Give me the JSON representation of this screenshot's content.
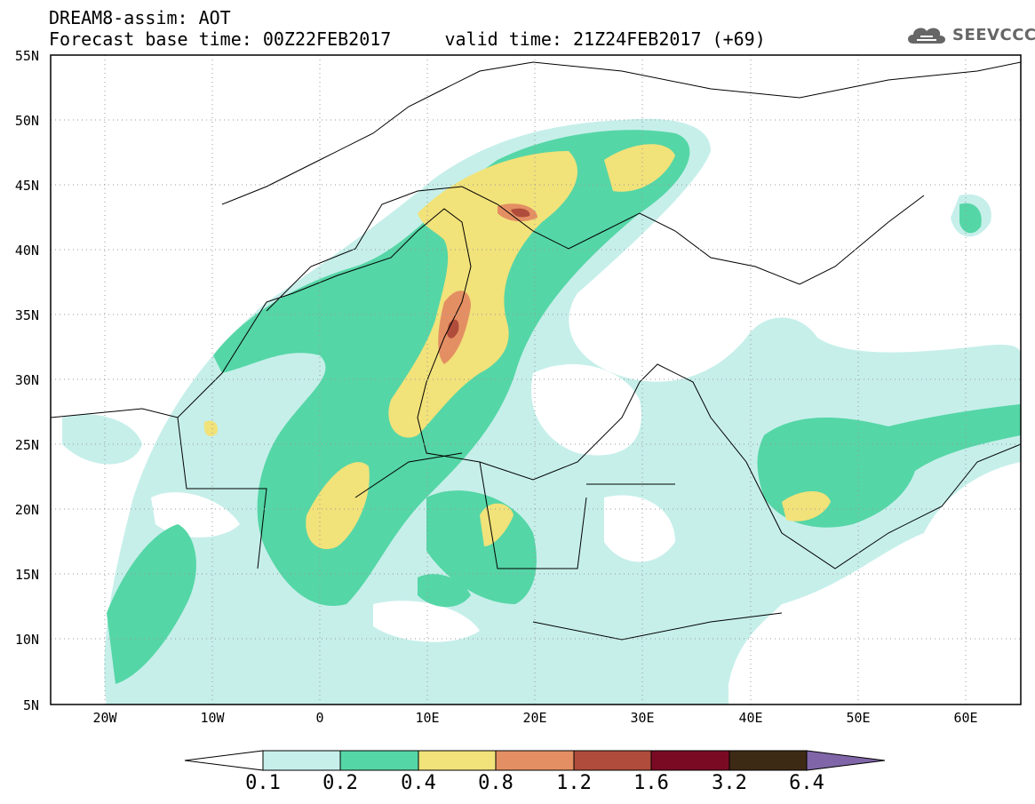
{
  "header": {
    "title_line1": "DREAM8-assim: AOT",
    "title_line2": "Forecast base time: 00Z22FEB2017     valid time: 21Z24FEB2017 (+69)"
  },
  "logo": {
    "text": "SEEVCCC",
    "icon": "cloud-icon"
  },
  "map": {
    "lat_ticks": [
      "55N",
      "50N",
      "45N",
      "40N",
      "35N",
      "30N",
      "25N",
      "20N",
      "15N",
      "10N",
      "5N"
    ],
    "lon_ticks": [
      "20W",
      "10W",
      "0",
      "10E",
      "20E",
      "30E",
      "40E",
      "50E",
      "60E"
    ],
    "lat_range": [
      5,
      55
    ],
    "lon_range": [
      -25,
      65
    ],
    "gridlines": "dotted"
  },
  "colorbar": {
    "levels": [
      "0.1",
      "0.2",
      "0.4",
      "0.8",
      "1.2",
      "1.6",
      "3.2",
      "6.4"
    ],
    "colors": [
      "#c6efea",
      "#55d6a6",
      "#f1e27a",
      "#e48f63",
      "#b04c3b",
      "#7a0a24",
      "#3d2a15",
      "#8066a8"
    ],
    "under_color": "#ffffff"
  }
}
